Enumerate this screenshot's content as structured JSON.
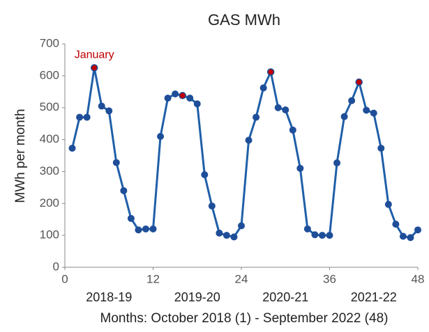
{
  "chart_data": {
    "type": "line",
    "title": "GAS MWh",
    "ylabel": "MWh per month",
    "xlabel": "Months: October 2018 (1) - September 2022 (48)",
    "annotation": "January",
    "season_labels": [
      "2018-19",
      "2019-20",
      "2020-21",
      "2021-22"
    ],
    "x": [
      1,
      2,
      3,
      4,
      5,
      6,
      7,
      8,
      9,
      10,
      11,
      12,
      13,
      14,
      15,
      16,
      17,
      18,
      19,
      20,
      21,
      22,
      23,
      24,
      25,
      26,
      27,
      28,
      29,
      30,
      31,
      32,
      33,
      34,
      35,
      36,
      37,
      38,
      39,
      40,
      41,
      42,
      43,
      44,
      45,
      46,
      47,
      48
    ],
    "series": [
      {
        "name": "GAS MWh",
        "color": "#1f5fa8",
        "marker_color": "#1f4e99",
        "values": [
          373,
          470,
          470,
          625,
          505,
          490,
          328,
          240,
          153,
          117,
          120,
          120,
          410,
          530,
          543,
          538,
          530,
          512,
          290,
          192,
          107,
          100,
          95,
          130,
          398,
          470,
          562,
          612,
          500,
          493,
          430,
          310,
          120,
          102,
          100,
          100,
          327,
          472,
          522,
          580,
          492,
          483,
          373,
          197,
          135,
          97,
          93,
          117
        ]
      }
    ],
    "highlight_x": [
      4,
      16,
      28,
      40
    ],
    "highlight_color": "#c00000",
    "xlim": [
      0,
      48
    ],
    "xticks": [
      0,
      12,
      24,
      36,
      48
    ],
    "ylim": [
      0,
      700
    ],
    "yticks": [
      0,
      100,
      200,
      300,
      400,
      500,
      600,
      700
    ],
    "grid": false
  }
}
